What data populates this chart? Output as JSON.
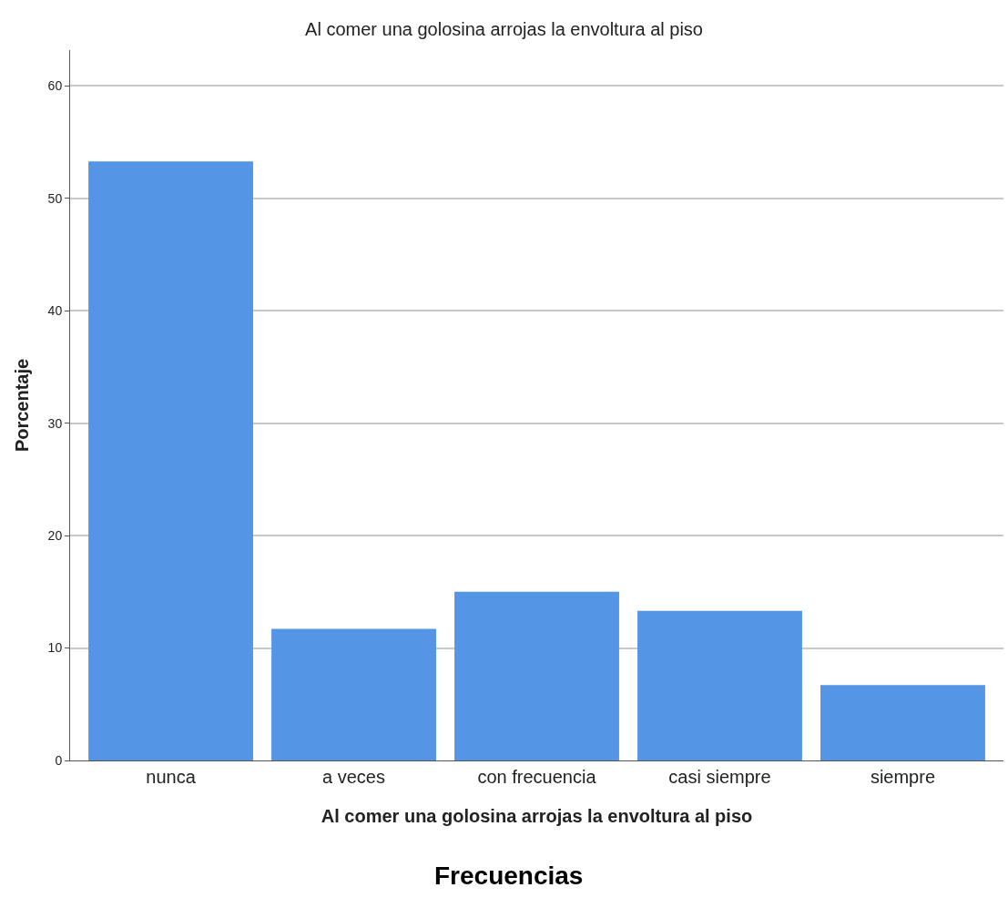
{
  "chart_data": {
    "type": "bar",
    "title": "Al comer una golosina arrojas la envoltura al piso",
    "xlabel": "Al comer una golosina arrojas la envoltura al piso",
    "ylabel": "Porcentaje",
    "categories": [
      "nunca",
      "a veces",
      "con frecuencia",
      "casi siempre",
      "siempre"
    ],
    "values": [
      53.3,
      11.7,
      15.0,
      13.3,
      6.7
    ],
    "color": "#5595e5",
    "ylim": [
      0,
      63.2
    ],
    "yticks": [
      0,
      10,
      20,
      30,
      40,
      50,
      60
    ],
    "grid": "y",
    "annotations": [
      "Frecuencias"
    ]
  }
}
